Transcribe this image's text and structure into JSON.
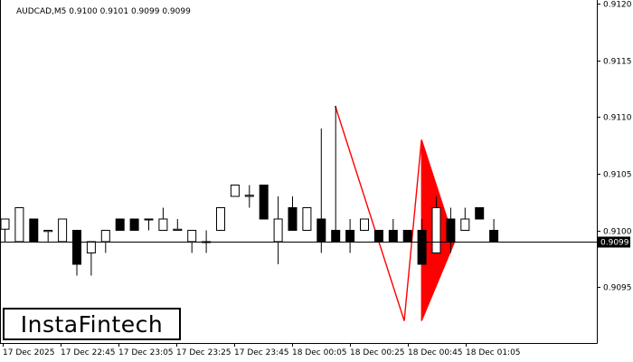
{
  "chart_data": {
    "type": "candlestick",
    "title": "AUDCAD,M5  0.9100 0.9101 0.9099 0.9099",
    "symbol": "AUDCAD",
    "timeframe": "M5",
    "header_values": [
      "0.9100",
      "0.9101",
      "0.9099",
      "0.9099"
    ],
    "ylim": [
      0.90895,
      0.91205
    ],
    "y_ticks": [
      "0.9120",
      "0.9115",
      "0.9110",
      "0.9105",
      "0.9100",
      "0.9095"
    ],
    "x_tick_labels": [
      "17 Dec 2025",
      "17 Dec 22:45",
      "17 Dec 23:05",
      "17 Dec 23:25",
      "17 Dec 23:45",
      "18 Dec 00:05",
      "18 Dec 00:25",
      "18 Dec 00:45",
      "18 Dec 01:05"
    ],
    "current_price": "0.9099",
    "candles": [
      {
        "o": 0.91001,
        "h": 0.9101,
        "l": 0.9099,
        "c": 0.9101
      },
      {
        "o": 0.9099,
        "h": 0.9102,
        "l": 0.9099,
        "c": 0.9102
      },
      {
        "o": 0.9101,
        "h": 0.9101,
        "l": 0.9099,
        "c": 0.9099
      },
      {
        "o": 0.90999,
        "h": 0.91,
        "l": 0.9099,
        "c": 0.91
      },
      {
        "o": 0.9099,
        "h": 0.9101,
        "l": 0.9099,
        "c": 0.9101
      },
      {
        "o": 0.91,
        "h": 0.91,
        "l": 0.9096,
        "c": 0.9097
      },
      {
        "o": 0.9098,
        "h": 0.9099,
        "l": 0.9096,
        "c": 0.9099
      },
      {
        "o": 0.9099,
        "h": 0.91,
        "l": 0.9098,
        "c": 0.91
      },
      {
        "o": 0.9101,
        "h": 0.9101,
        "l": 0.91,
        "c": 0.91
      },
      {
        "o": 0.9101,
        "h": 0.9101,
        "l": 0.91,
        "c": 0.91
      },
      {
        "o": 0.9101,
        "h": 0.9101,
        "l": 0.91,
        "c": 0.9101
      },
      {
        "o": 0.91,
        "h": 0.9102,
        "l": 0.91,
        "c": 0.9101
      },
      {
        "o": 0.91,
        "h": 0.9101,
        "l": 0.91,
        "c": 0.91001
      },
      {
        "o": 0.9099,
        "h": 0.91,
        "l": 0.9098,
        "c": 0.91
      },
      {
        "o": 0.9099,
        "h": 0.91,
        "l": 0.9098,
        "c": 0.9099
      },
      {
        "o": 0.91,
        "h": 0.9102,
        "l": 0.91,
        "c": 0.9102
      },
      {
        "o": 0.9103,
        "h": 0.9104,
        "l": 0.9103,
        "c": 0.9104
      },
      {
        "o": 0.9103,
        "h": 0.9104,
        "l": 0.9102,
        "c": 0.91031
      },
      {
        "o": 0.9104,
        "h": 0.9104,
        "l": 0.9101,
        "c": 0.9101
      },
      {
        "o": 0.9099,
        "h": 0.9103,
        "l": 0.9097,
        "c": 0.9101
      },
      {
        "o": 0.9102,
        "h": 0.9103,
        "l": 0.91,
        "c": 0.91
      },
      {
        "o": 0.91,
        "h": 0.9102,
        "l": 0.91,
        "c": 0.9102
      },
      {
        "o": 0.9101,
        "h": 0.9109,
        "l": 0.9098,
        "c": 0.9099
      },
      {
        "o": 0.91,
        "h": 0.9111,
        "l": 0.9099,
        "c": 0.9099
      },
      {
        "o": 0.91,
        "h": 0.9101,
        "l": 0.9098,
        "c": 0.9099
      },
      {
        "o": 0.91,
        "h": 0.9101,
        "l": 0.91,
        "c": 0.9101
      },
      {
        "o": 0.91,
        "h": 0.91,
        "l": 0.9099,
        "c": 0.9099
      },
      {
        "o": 0.91,
        "h": 0.9101,
        "l": 0.9099,
        "c": 0.9099
      },
      {
        "o": 0.91,
        "h": 0.91,
        "l": 0.9099,
        "c": 0.9099
      },
      {
        "o": 0.91,
        "h": 0.9101,
        "l": 0.9097,
        "c": 0.9097
      },
      {
        "o": 0.9098,
        "h": 0.9103,
        "l": 0.9098,
        "c": 0.9102
      },
      {
        "o": 0.9101,
        "h": 0.9102,
        "l": 0.9098,
        "c": 0.9099
      },
      {
        "o": 0.91,
        "h": 0.9102,
        "l": 0.91,
        "c": 0.9101
      },
      {
        "o": 0.9102,
        "h": 0.9102,
        "l": 0.9101,
        "c": 0.9101
      },
      {
        "o": 0.91,
        "h": 0.9101,
        "l": 0.9099,
        "c": 0.9099
      }
    ],
    "pattern": {
      "line_points": [
        [
          23,
          0.9111
        ],
        [
          27.8,
          0.9092
        ],
        [
          29,
          0.9108
        ],
        [
          31.3,
          0.9099
        ],
        [
          29,
          0.9092
        ]
      ],
      "fill_triangle": [
        [
          29,
          0.9108
        ],
        [
          31.3,
          0.9099
        ],
        [
          29,
          0.9092
        ]
      ],
      "color": "#ff0000"
    },
    "grid": false
  },
  "logo": {
    "text": "InstaFintech"
  }
}
